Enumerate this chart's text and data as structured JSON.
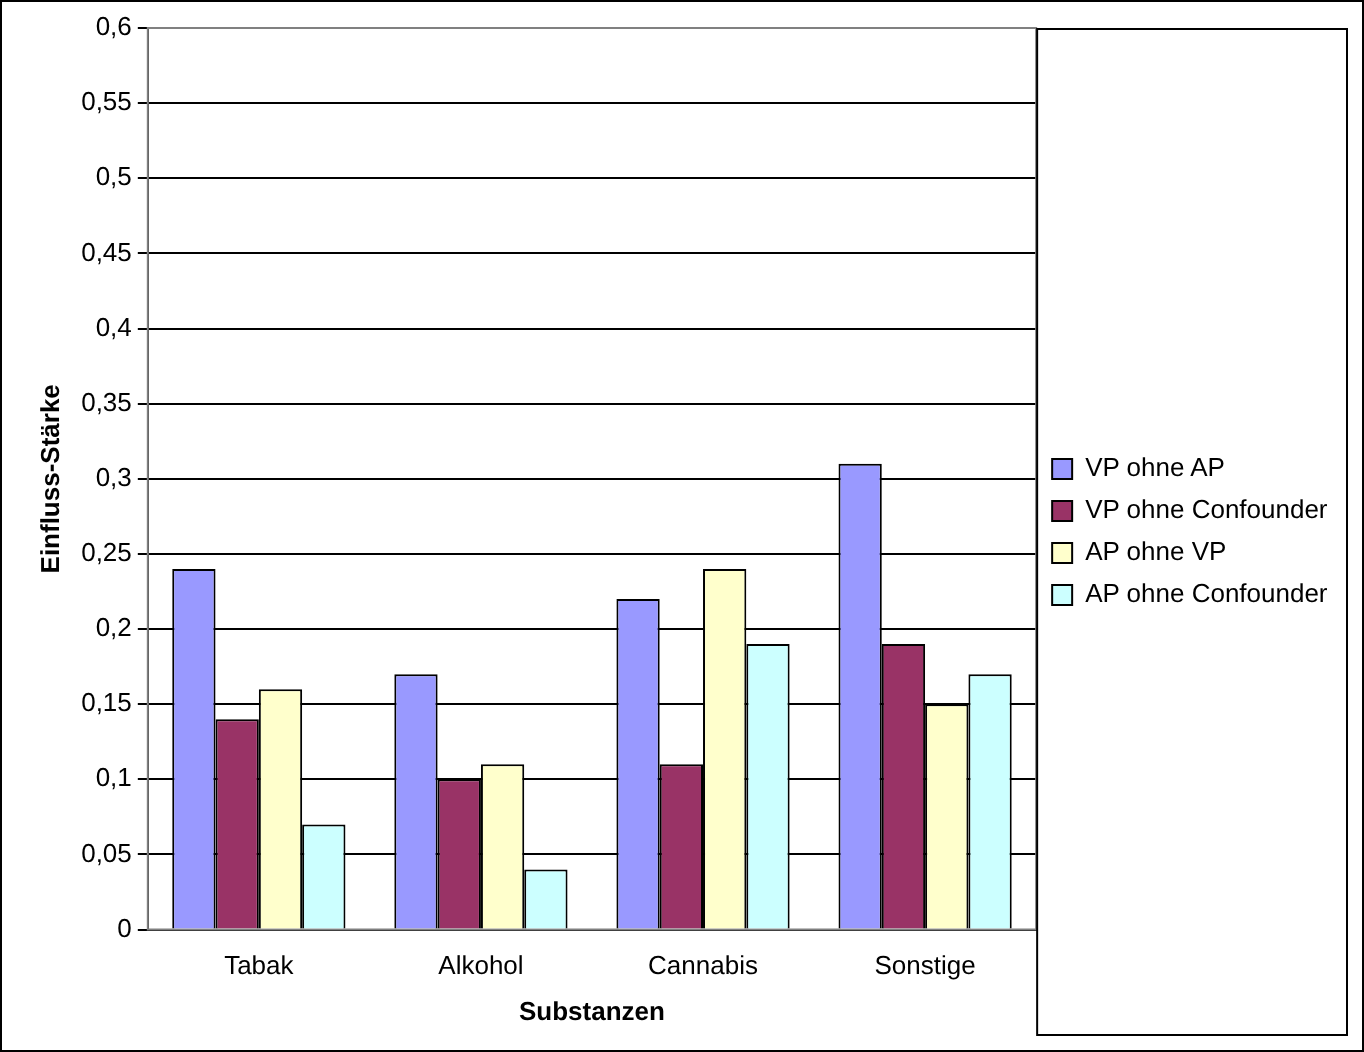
{
  "chart_data": {
    "type": "bar",
    "xlabel": "Substanzen",
    "ylabel": "Einfluss-Stärke",
    "categories": [
      "Tabak",
      "Alkohol",
      "Cannabis",
      "Sonstige"
    ],
    "series": [
      {
        "name": "VP ohne AP",
        "color": "#9999ff",
        "values": [
          0.24,
          0.17,
          0.22,
          0.31
        ]
      },
      {
        "name": "VP ohne Confounder",
        "color": "#993366",
        "values": [
          0.14,
          0.1,
          0.11,
          0.19
        ]
      },
      {
        "name": "AP ohne VP",
        "color": "#ffffcc",
        "values": [
          0.16,
          0.11,
          0.24,
          0.15
        ]
      },
      {
        "name": "AP ohne Confounder",
        "color": "#ccffff",
        "values": [
          0.07,
          0.04,
          0.19,
          0.17
        ]
      }
    ],
    "ylim": [
      0,
      0.6
    ],
    "yticks": [
      0,
      {
        "value": 0.05,
        "label": "0,05"
      },
      {
        "value": 0.1,
        "label": "0,1"
      },
      {
        "value": 0.15,
        "label": "0,15"
      },
      {
        "value": 0.2,
        "label": "0,2"
      },
      {
        "value": 0.25,
        "label": "0,25"
      },
      {
        "value": 0.3,
        "label": "0,3"
      },
      {
        "value": 0.35,
        "label": "0,35"
      },
      {
        "value": 0.4,
        "label": "0,4"
      },
      {
        "value": 0.45,
        "label": "0,45"
      },
      {
        "value": 0.5,
        "label": "0,5"
      },
      {
        "value": 0.55,
        "label": "0,55"
      },
      {
        "value": 0.6,
        "label": "0,6"
      }
    ],
    "grid": "y",
    "legend": "right"
  }
}
